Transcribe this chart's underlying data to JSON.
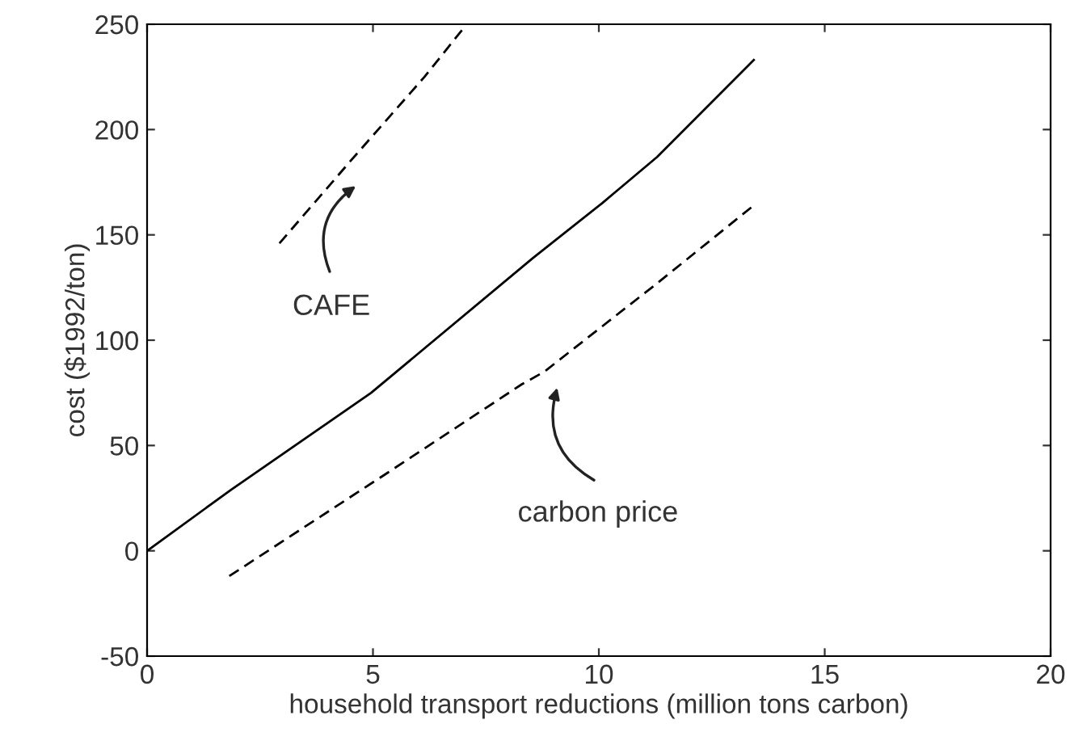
{
  "chart_data": {
    "type": "line",
    "xlabel": "household transport reductions (million tons carbon)",
    "ylabel": "cost ($1992/ton)",
    "xlim": [
      0,
      20
    ],
    "xticks": [
      0,
      5,
      10,
      15,
      20
    ],
    "ylim": [
      -50,
      250
    ],
    "yticks": [
      -50,
      0,
      50,
      100,
      150,
      200,
      250
    ],
    "grid": false,
    "legend": false,
    "marker": "none",
    "series": [
      {
        "color": "#000000",
        "line_style": "solid",
        "x": [
          0,
          1.86,
          4.96,
          8.54,
          10.07,
          11.29,
          13.43
        ],
        "values": [
          0,
          29,
          75,
          139,
          165,
          187,
          233
        ]
      },
      {
        "color": "#000000",
        "line_style": "dashed",
        "x": [
          2.93,
          4.5,
          6.14,
          7.0,
          7.05
        ],
        "values": [
          146,
          185,
          225,
          248,
          250
        ]
      },
      {
        "color": "#000000",
        "line_style": "dashed",
        "x": [
          1.82,
          5.32,
          8.29,
          8.79,
          11.29,
          13.43
        ],
        "values": [
          -12,
          37,
          79,
          85,
          127,
          164
        ]
      }
    ],
    "annotations": [
      "CAFE",
      "carbon price"
    ]
  }
}
